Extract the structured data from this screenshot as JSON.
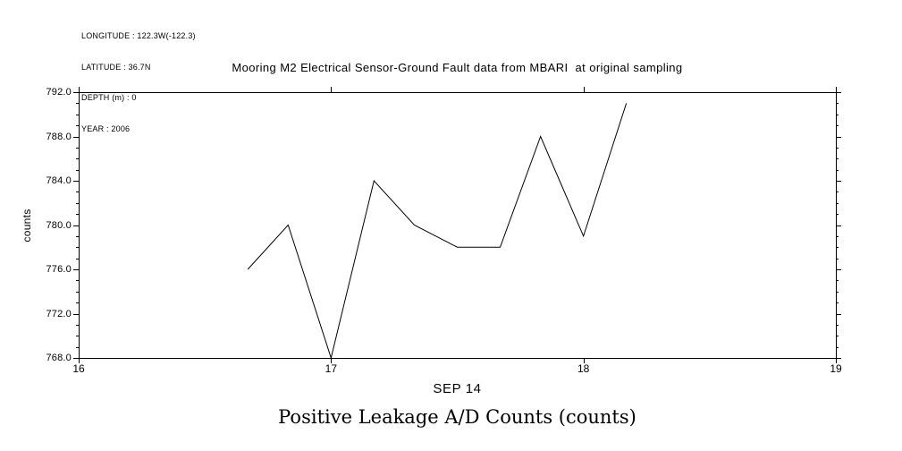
{
  "header_info": {
    "lines": [
      "LONGITUDE : 122.3W(-122.3)",
      "LATITUDE : 36.7N",
      "DEPTH (m) : 0",
      "YEAR : 2006"
    ]
  },
  "chart_data": {
    "type": "line",
    "title": "Mooring M2 Electrical Sensor-Ground Fault data from MBARI  at original sampling",
    "bottom_title": "Positive Leakage A/D Counts (counts)",
    "ylabel": "counts",
    "xlabel": "SEP 14",
    "x": [
      16.67,
      16.83,
      17.0,
      17.17,
      17.33,
      17.5,
      17.67,
      17.83,
      18.0,
      18.17
    ],
    "y": [
      776,
      780,
      768,
      784,
      780,
      778,
      778,
      788,
      779,
      791
    ],
    "xlim": [
      16,
      19
    ],
    "ylim": [
      768,
      792
    ],
    "xticks": [
      16,
      17,
      18,
      19
    ],
    "xtick_labels": [
      "16",
      "17",
      "18",
      "19"
    ],
    "yticks": [
      768,
      772,
      776,
      780,
      784,
      788,
      792
    ],
    "ytick_labels": [
      "768.0",
      "772.0",
      "776.0",
      "780.0",
      "784.0",
      "788.0",
      "792.0"
    ],
    "y_minor_step": 1,
    "grid": false,
    "legend": "none",
    "line_color": "#000000",
    "frame_color": "#000000",
    "background_color": "#ffffff"
  }
}
